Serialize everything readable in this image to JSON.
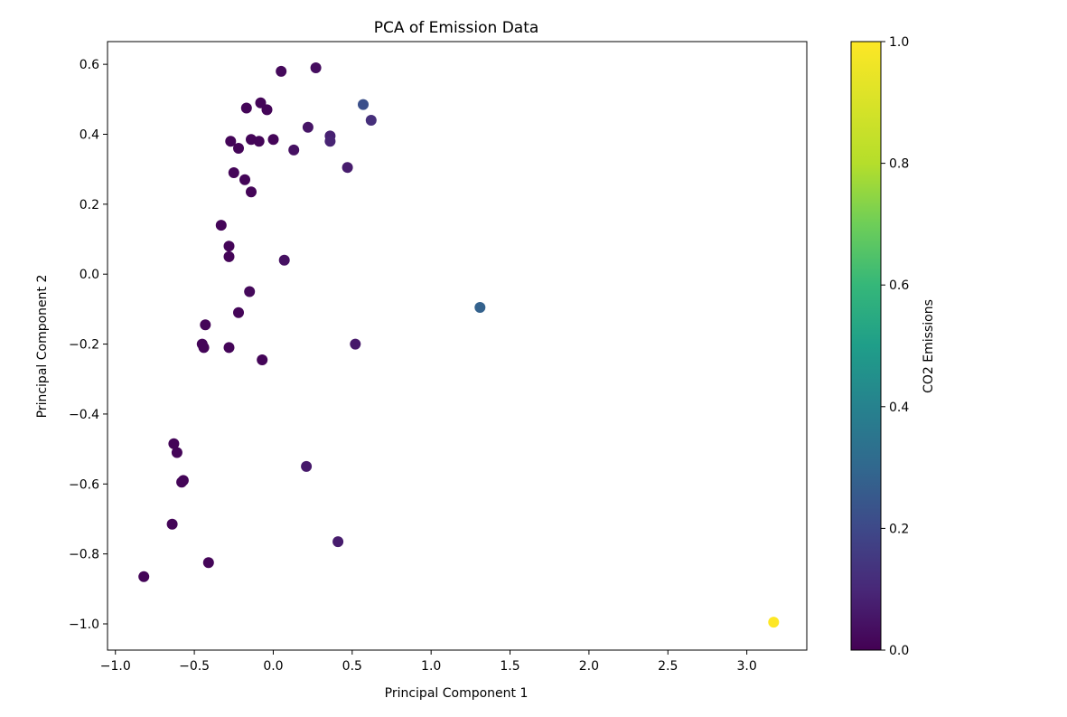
{
  "chart_data": {
    "type": "scatter",
    "title": "PCA of Emission Data",
    "xlabel": "Principal Component 1",
    "ylabel": "Principal Component 2",
    "xlim": [
      -1.05,
      3.38
    ],
    "ylim": [
      -1.075,
      0.665
    ],
    "xticks": [
      -1.0,
      -0.5,
      0.0,
      0.5,
      1.0,
      1.5,
      2.0,
      2.5,
      3.0
    ],
    "xtick_labels": [
      "−1.0",
      "−0.5",
      "0.0",
      "0.5",
      "1.0",
      "1.5",
      "2.0",
      "2.5",
      "3.0"
    ],
    "yticks": [
      0.6,
      0.4,
      0.2,
      0.0,
      -0.2,
      -0.4,
      -0.6,
      -0.8,
      -1.0
    ],
    "ytick_labels": [
      "0.6",
      "0.4",
      "0.2",
      "0.0",
      "−0.2",
      "−0.4",
      "−0.6",
      "−0.8",
      "−1.0"
    ],
    "colormap": "viridis",
    "colorbar": {
      "label": "CO2 Emissions",
      "range": [
        0.0,
        1.0
      ],
      "ticks": [
        0.0,
        0.2,
        0.4,
        0.6,
        0.8,
        1.0
      ],
      "tick_labels": [
        "0.0",
        "0.2",
        "0.4",
        "0.6",
        "0.8",
        "1.0"
      ]
    },
    "grid": false,
    "points": [
      {
        "x": 0.05,
        "y": 0.58,
        "c": 0.02
      },
      {
        "x": 0.27,
        "y": 0.59,
        "c": 0.03
      },
      {
        "x": -0.08,
        "y": 0.49,
        "c": 0.01
      },
      {
        "x": -0.17,
        "y": 0.475,
        "c": 0.01
      },
      {
        "x": -0.04,
        "y": 0.47,
        "c": 0.01
      },
      {
        "x": 0.57,
        "y": 0.485,
        "c": 0.22
      },
      {
        "x": 0.62,
        "y": 0.44,
        "c": 0.12
      },
      {
        "x": 0.22,
        "y": 0.42,
        "c": 0.05
      },
      {
        "x": 0.36,
        "y": 0.395,
        "c": 0.08
      },
      {
        "x": 0.36,
        "y": 0.38,
        "c": 0.09
      },
      {
        "x": -0.27,
        "y": 0.38,
        "c": 0.01
      },
      {
        "x": -0.14,
        "y": 0.385,
        "c": 0.01
      },
      {
        "x": -0.09,
        "y": 0.38,
        "c": 0.01
      },
      {
        "x": 0.0,
        "y": 0.385,
        "c": 0.01
      },
      {
        "x": -0.22,
        "y": 0.36,
        "c": 0.01
      },
      {
        "x": 0.13,
        "y": 0.355,
        "c": 0.04
      },
      {
        "x": 0.47,
        "y": 0.305,
        "c": 0.07
      },
      {
        "x": -0.25,
        "y": 0.29,
        "c": 0.01
      },
      {
        "x": -0.18,
        "y": 0.27,
        "c": 0.01
      },
      {
        "x": -0.14,
        "y": 0.235,
        "c": 0.01
      },
      {
        "x": -0.33,
        "y": 0.14,
        "c": 0.01
      },
      {
        "x": -0.28,
        "y": 0.08,
        "c": 0.01
      },
      {
        "x": -0.28,
        "y": 0.05,
        "c": 0.01
      },
      {
        "x": 0.07,
        "y": 0.04,
        "c": 0.04
      },
      {
        "x": -0.15,
        "y": -0.05,
        "c": 0.02
      },
      {
        "x": -0.22,
        "y": -0.11,
        "c": 0.01
      },
      {
        "x": -0.43,
        "y": -0.145,
        "c": 0.01
      },
      {
        "x": -0.45,
        "y": -0.2,
        "c": 0.01
      },
      {
        "x": -0.44,
        "y": -0.21,
        "c": 0.01
      },
      {
        "x": -0.28,
        "y": -0.21,
        "c": 0.01
      },
      {
        "x": -0.07,
        "y": -0.245,
        "c": 0.01
      },
      {
        "x": 0.52,
        "y": -0.2,
        "c": 0.06
      },
      {
        "x": 1.31,
        "y": -0.095,
        "c": 0.28
      },
      {
        "x": -0.63,
        "y": -0.485,
        "c": 0.01
      },
      {
        "x": -0.61,
        "y": -0.51,
        "c": 0.01
      },
      {
        "x": -0.57,
        "y": -0.59,
        "c": 0.01
      },
      {
        "x": -0.58,
        "y": -0.595,
        "c": 0.01
      },
      {
        "x": 0.21,
        "y": -0.55,
        "c": 0.06
      },
      {
        "x": -0.64,
        "y": -0.715,
        "c": 0.01
      },
      {
        "x": 0.41,
        "y": -0.765,
        "c": 0.07
      },
      {
        "x": -0.41,
        "y": -0.825,
        "c": 0.01
      },
      {
        "x": -0.82,
        "y": -0.865,
        "c": 0.01
      },
      {
        "x": 3.17,
        "y": -0.995,
        "c": 1.0
      }
    ]
  }
}
